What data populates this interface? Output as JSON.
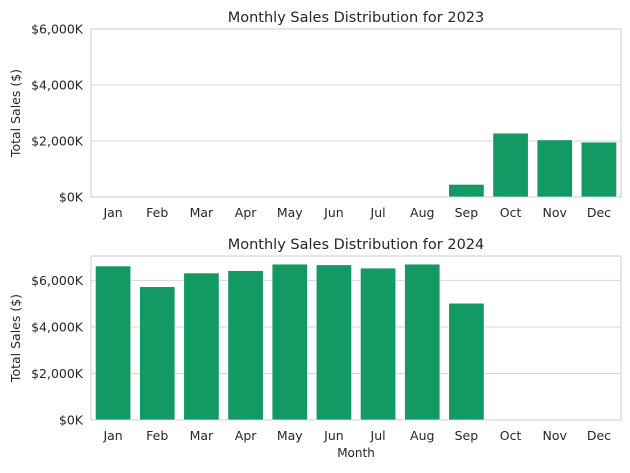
{
  "chart_data": [
    {
      "type": "bar",
      "title": "Monthly Sales Distribution for 2023",
      "xlabel": "",
      "ylabel": "Total Sales ($)",
      "categories": [
        "Jan",
        "Feb",
        "Mar",
        "Apr",
        "May",
        "Jun",
        "Jul",
        "Aug",
        "Sep",
        "Oct",
        "Nov",
        "Dec"
      ],
      "values": [
        0,
        0,
        0,
        0,
        0,
        0,
        0,
        0,
        450,
        2280,
        2040,
        1960
      ],
      "unit": "thousands of dollars",
      "ylim": [
        0,
        6000
      ],
      "yticks": [
        0,
        2000,
        4000,
        6000
      ],
      "ytick_labels": [
        "$0K",
        "$2,000K",
        "$4,000K",
        "$6,000K"
      ],
      "grid": "horizontal",
      "bar_color": "#139964"
    },
    {
      "type": "bar",
      "title": "Monthly Sales Distribution for 2024",
      "xlabel": "Month",
      "ylabel": "Total Sales ($)",
      "categories": [
        "Jan",
        "Feb",
        "Mar",
        "Apr",
        "May",
        "Jun",
        "Jul",
        "Aug",
        "Sep",
        "Oct",
        "Nov",
        "Dec"
      ],
      "values": [
        6620,
        5730,
        6320,
        6420,
        6700,
        6670,
        6530,
        6700,
        5020,
        0,
        0,
        0
      ],
      "unit": "thousands of dollars",
      "ylim": [
        0,
        7050
      ],
      "yticks": [
        0,
        2000,
        4000,
        6000
      ],
      "ytick_labels": [
        "$0K",
        "$2,000K",
        "$4,000K",
        "$6,000K"
      ],
      "grid": "horizontal",
      "bar_color": "#139964"
    }
  ]
}
